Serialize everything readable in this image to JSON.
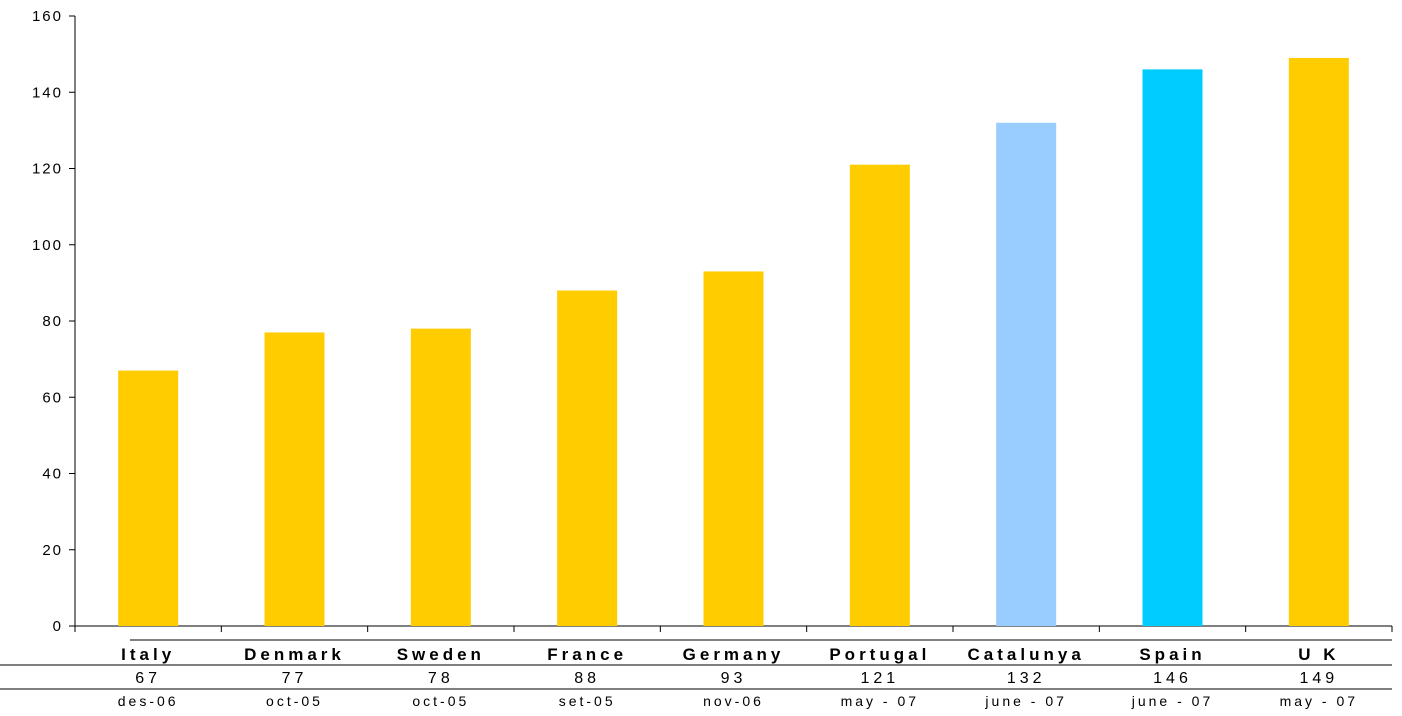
{
  "chart_data": {
    "type": "bar",
    "title": "",
    "xlabel": "",
    "ylabel": "",
    "ylim": [
      0,
      160
    ],
    "yticks": [
      0,
      20,
      40,
      60,
      80,
      100,
      120,
      140,
      160
    ],
    "grid": false,
    "legend": "none",
    "categories": [
      "Italy",
      "Denmark",
      "Sweden",
      "France",
      "Germany",
      "Portugal",
      "Catalunya",
      "Spain",
      "U K"
    ],
    "values": [
      67,
      77,
      78,
      88,
      93,
      121,
      132,
      146,
      149
    ],
    "value_labels": [
      "67",
      "77",
      "78",
      "88",
      "93",
      "121",
      "132",
      "146",
      "149"
    ],
    "dates": [
      "des-06",
      "oct-05",
      "oct-05",
      "set-05",
      "nov-06",
      "may - 07",
      "june - 07",
      "june - 07",
      "may - 07"
    ],
    "bar_colors": [
      "#FFCC00",
      "#FFCC00",
      "#FFCC00",
      "#FFCC00",
      "#FFCC00",
      "#FFCC00",
      "#99CCFF",
      "#00CCFF",
      "#FFCC00"
    ]
  }
}
